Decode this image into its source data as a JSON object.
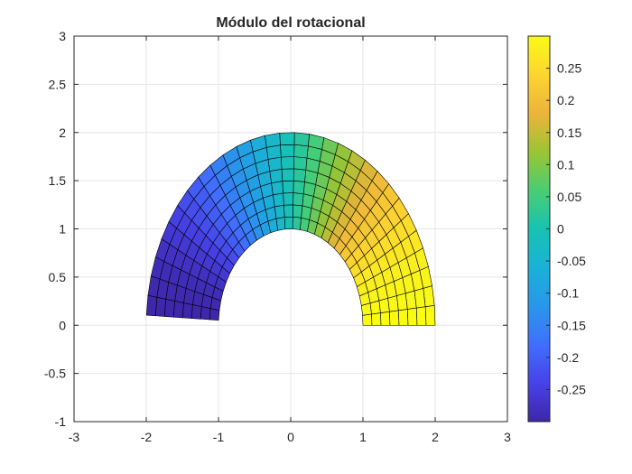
{
  "chart_data": {
    "type": "heatmap",
    "title": "Módulo del rotacional",
    "xlabel": "",
    "ylabel": "",
    "xlim": [
      -3,
      3
    ],
    "ylim": [
      -1,
      3
    ],
    "xticks": [
      -3,
      -2,
      -1,
      0,
      1,
      2,
      3
    ],
    "yticks": [
      -1,
      -0.5,
      0,
      0.5,
      1,
      1.5,
      2,
      2.5,
      3
    ],
    "xtick_labels": [
      "-3",
      "-2",
      "-1",
      "0",
      "1",
      "2",
      "3"
    ],
    "ytick_labels": [
      "-1",
      "-0.5",
      "0",
      "0.5",
      "1",
      "1.5",
      "2",
      "2.5",
      "3"
    ],
    "grid": true,
    "mesh": {
      "shape": "annular sector",
      "r_inner": 1,
      "r_outer": 2,
      "theta_start_deg": 0,
      "theta_end_deg": 177,
      "radial_divisions": 8,
      "angular_divisions": 30
    },
    "colorbar": {
      "colormap": "parula",
      "min": -0.3,
      "max": 0.3,
      "ticks": [
        -0.25,
        -0.2,
        -0.15,
        -0.1,
        -0.05,
        0,
        0.05,
        0.1,
        0.15,
        0.2,
        0.25
      ],
      "tick_labels": [
        "-0.25",
        "-0.2",
        "-0.15",
        "-0.1",
        "-0.05",
        "0",
        "0.05",
        "0.1",
        "0.15",
        "0.2",
        "0.25"
      ]
    },
    "value_function": "0.3 * cos(theta)"
  },
  "colors": {
    "axis": "#262626",
    "grid": "#e6e6e6",
    "mesh_edge": "#000000"
  }
}
